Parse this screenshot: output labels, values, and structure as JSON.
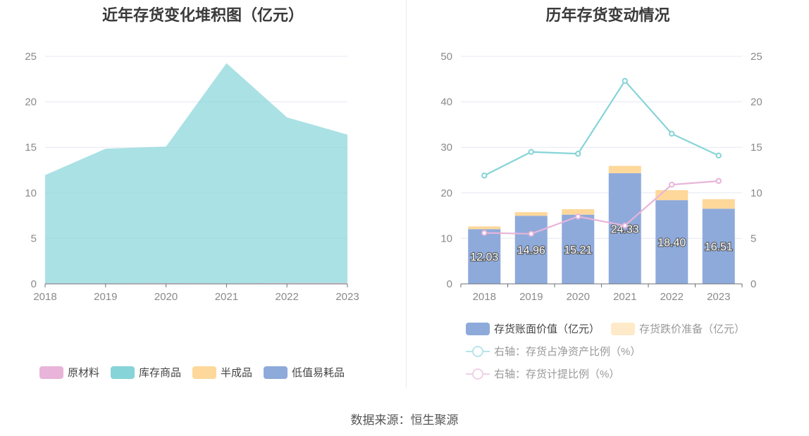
{
  "source_text": "数据来源：恒生聚源",
  "chart_data": [
    {
      "type": "area",
      "stacked": true,
      "title": "近年存货变化堆积图（亿元）",
      "x": [
        "2018",
        "2019",
        "2020",
        "2021",
        "2022",
        "2023"
      ],
      "ylim": [
        0,
        25
      ],
      "yticks": [
        "0",
        "5",
        "10",
        "15",
        "20",
        "25"
      ],
      "grid": true,
      "legend_position": "bottom",
      "series": [
        {
          "name": "原材料",
          "color": "#e8b4d9",
          "values": [
            0.05,
            0.05,
            0.08,
            0.05,
            0.1,
            0.1
          ]
        },
        {
          "name": "库存商品",
          "color": "#86d4d8",
          "values": [
            11.9,
            14.8,
            15.0,
            24.2,
            18.2,
            16.3
          ]
        },
        {
          "name": "半成品",
          "color": "#fdd89a",
          "values": [
            0,
            0,
            0,
            0,
            0,
            0
          ]
        },
        {
          "name": "低值易耗品",
          "color": "#8eaadb",
          "values": [
            0,
            0,
            0,
            0,
            0,
            0
          ]
        }
      ]
    },
    {
      "type": "bar",
      "stacked": true,
      "title": "历年存货变动情况",
      "categories": [
        "2018",
        "2019",
        "2020",
        "2021",
        "2022",
        "2023"
      ],
      "ylim": [
        0,
        50
      ],
      "yticks": [
        "0",
        "10",
        "20",
        "30",
        "40",
        "50"
      ],
      "y2lim": [
        0,
        25
      ],
      "y2ticks": [
        "0",
        "5",
        "10",
        "15",
        "20",
        "25"
      ],
      "grid": true,
      "legend_position": "bottom",
      "series": [
        {
          "name": "存货账面价值（亿元）",
          "color": "#8eaadb",
          "values": [
            12.03,
            14.96,
            15.21,
            24.33,
            18.4,
            16.51
          ],
          "labels": [
            "12.03",
            "14.96",
            "15.21",
            "24.33",
            "18.40",
            "16.51"
          ]
        },
        {
          "name": "存货跌价准备（亿元）",
          "color": "#fdd89a",
          "values": [
            0.6,
            0.8,
            1.2,
            1.6,
            2.2,
            2.1
          ]
        }
      ],
      "line_series": [
        {
          "name": "右轴：存货占净资产比例（%）",
          "color": "#86d4d8",
          "axis": "right",
          "values": [
            11.9,
            14.5,
            14.3,
            22.3,
            16.5,
            14.1
          ]
        },
        {
          "name": "右轴：存货计提比例（%）",
          "color": "#e8b4d9",
          "axis": "right",
          "values": [
            5.6,
            5.5,
            7.4,
            6.4,
            10.9,
            11.3
          ]
        }
      ]
    }
  ]
}
